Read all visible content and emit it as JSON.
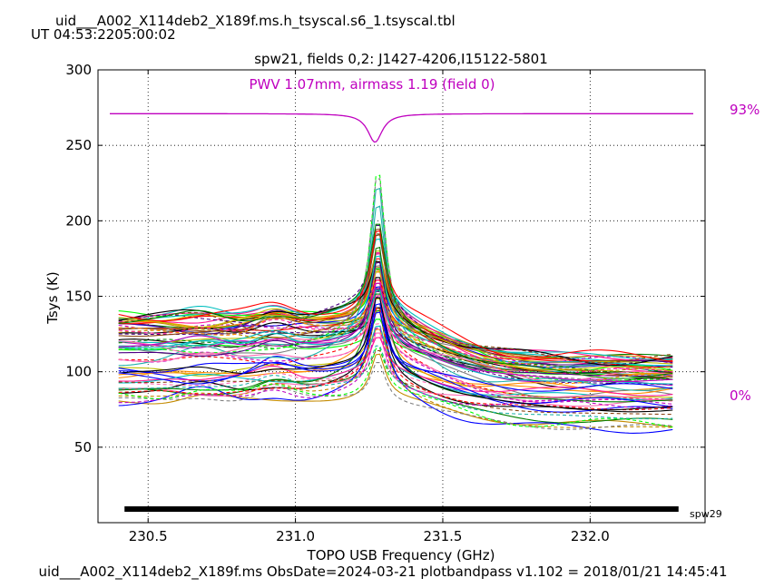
{
  "header": {
    "title_line1": "uid___A002_X114deb2_X189f.ms.h_tsyscal.s6_1.tsyscal.tbl",
    "title_line2": "UT 04:53:2205:00:02"
  },
  "footer": {
    "text": "uid___A002_X114deb2_X189f.ms  ObsDate=2024-03-21   plotbandpass v1.102 = 2018/01/21 14:45:41"
  },
  "annotations": {
    "pwv_top_pct": "93%",
    "pwv_bottom_pct": "0%",
    "spw_tag": "spw29"
  },
  "colors": {
    "atm_curve": "#bf00bf",
    "palette": [
      "#000000",
      "#ff0000",
      "#008000",
      "#0000ff",
      "#00bfbf",
      "#bf00bf",
      "#bfbf00",
      "#c48a00",
      "#00ff00",
      "#ff1493",
      "#808080",
      "#4b0082",
      "#ff8c00",
      "#8b4513",
      "#20b2aa",
      "#ff69b4"
    ]
  },
  "chart_data": {
    "type": "line",
    "title": "spw21,  fields 0,2: J1427-4206,I15122-5801",
    "subtitle": "PWV 1.07mm, airmass 1.19 (field 0)",
    "xlabel": "TOPO USB Frequency (GHz)",
    "ylabel": "Tsys (K)",
    "xlim": [
      230.33,
      232.39
    ],
    "ylim": [
      0,
      300
    ],
    "xticks": [
      230.5,
      231.0,
      231.5,
      232.0
    ],
    "xtick_labels": [
      "230.5",
      "231.0",
      "231.5",
      "232.0"
    ],
    "yticks": [
      50,
      100,
      150,
      200,
      250,
      300
    ],
    "ytick_labels": [
      "50",
      "100",
      "150",
      "200",
      "250",
      "300"
    ],
    "grid": true,
    "grid_style": "dotted",
    "freq_range": [
      230.4,
      232.28
    ],
    "peak_freq": 231.28,
    "spw_bar": {
      "x": [
        230.42,
        232.3
      ],
      "y": 9
    },
    "series_count": 70,
    "series_baseline_left_range": [
      80,
      142
    ],
    "series_baseline_right_range": [
      62,
      110
    ],
    "series_peak_top_range": [
      108,
      250
    ],
    "atm_transmission": {
      "baseline_y": 271,
      "dip_y": 252,
      "dip_x": 231.27,
      "x": [
        230.37,
        232.35
      ]
    }
  }
}
